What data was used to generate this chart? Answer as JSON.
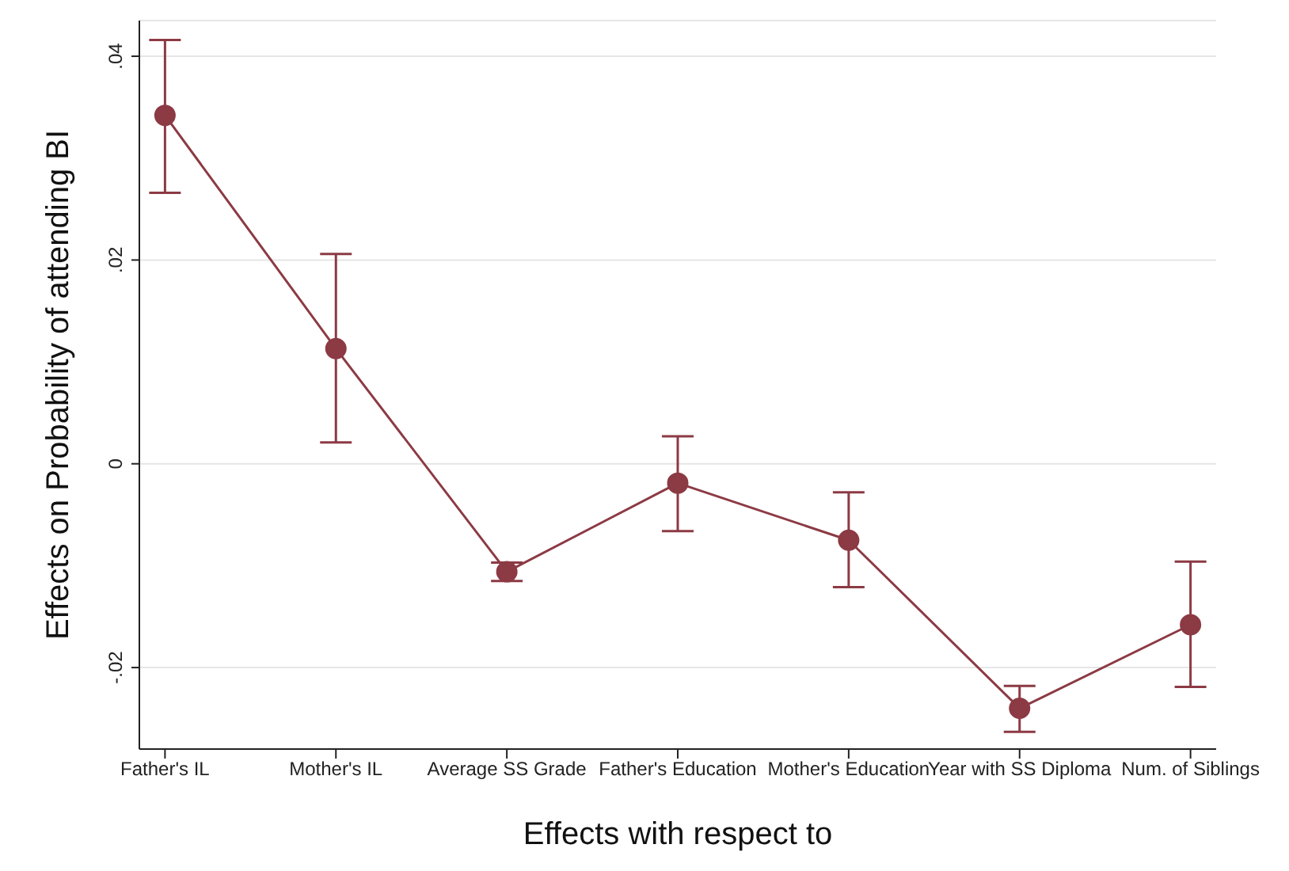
{
  "chart_data": {
    "type": "line",
    "xlabel": "Effects with respect to",
    "ylabel": "Effects on Probability of attending BI",
    "categories": [
      "Father's IL",
      "Mother's IL",
      "Average SS Grade",
      "Father's Education",
      "Mother's Education",
      "Year with SS Diploma",
      "Num. of Siblings"
    ],
    "series": [
      {
        "color": "#8c3a44",
        "values": [
          0.0342,
          0.0113,
          -0.0106,
          -0.0019,
          -0.0075,
          -0.024,
          -0.0158
        ],
        "errors": [
          [
            0.0266,
            0.0416
          ],
          [
            0.0021,
            0.0206
          ],
          [
            -0.0115,
            -0.0097
          ],
          [
            -0.0066,
            0.0027
          ],
          [
            -0.0121,
            -0.0028
          ],
          [
            -0.0263,
            -0.0218
          ],
          [
            -0.0219,
            -0.0096
          ]
        ]
      }
    ],
    "ylim": [
      -0.028,
      0.0435
    ],
    "yticks": [
      {
        "value": 0.04,
        "label": ".04"
      },
      {
        "value": 0.02,
        "label": ".02"
      },
      {
        "value": 0,
        "label": "0"
      },
      {
        "value": -0.02,
        "label": "-.02"
      }
    ],
    "grid": "y",
    "marker": "circle",
    "line_style": "solid",
    "legend": false
  }
}
